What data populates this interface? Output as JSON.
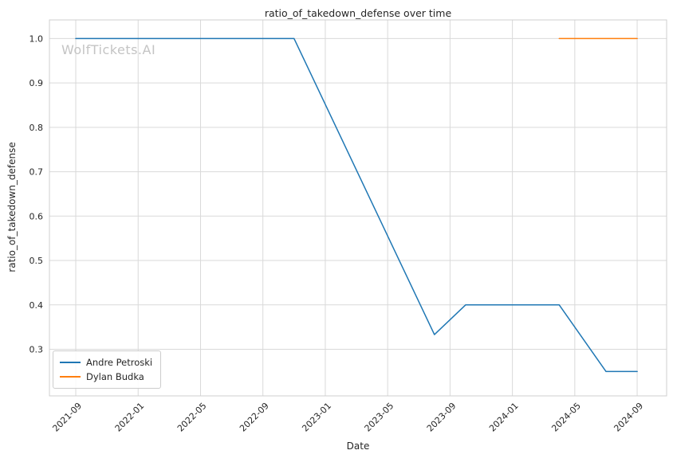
{
  "figure": {
    "title": "ratio_of_takedown_defense over time",
    "xlabel": "Date",
    "ylabel": "ratio_of_takedown_defense",
    "watermark": "WolfTickets.AI",
    "background_color": "#ffffff",
    "grid_color": "#d9d9d9",
    "frame_color": "#cfcfcf",
    "text_color": "#262626"
  },
  "chart_data": {
    "type": "line",
    "title": "ratio_of_takedown_defense over time",
    "xlabel": "Date",
    "ylabel": "ratio_of_takedown_defense",
    "grid": true,
    "legend_position": "lower left",
    "xlim": [
      2021.526,
      2024.824
    ],
    "ylim": [
      0.195,
      1.042
    ],
    "x_ticks": [
      "2021-09",
      "2022-01",
      "2022-05",
      "2022-09",
      "2023-01",
      "2023-05",
      "2023-09",
      "2024-01",
      "2024-05",
      "2024-09"
    ],
    "y_ticks": [
      0.3,
      0.4,
      0.5,
      0.6,
      0.7,
      0.8,
      0.9,
      1.0
    ],
    "series": [
      {
        "name": "Andre Petroski",
        "color": "#1f77b4",
        "points": [
          {
            "date": "2021-09",
            "value": 1.0
          },
          {
            "date": "2022-11",
            "value": 1.0
          },
          {
            "date": "2023-08",
            "value": 0.333
          },
          {
            "date": "2023-10",
            "value": 0.4
          },
          {
            "date": "2024-04",
            "value": 0.4
          },
          {
            "date": "2024-07",
            "value": 0.25
          },
          {
            "date": "2024-09",
            "value": 0.25
          }
        ]
      },
      {
        "name": "Dylan Budka",
        "color": "#ff7f0e",
        "points": [
          {
            "date": "2024-04",
            "value": 1.0
          },
          {
            "date": "2024-09",
            "value": 1.0
          }
        ]
      }
    ]
  }
}
